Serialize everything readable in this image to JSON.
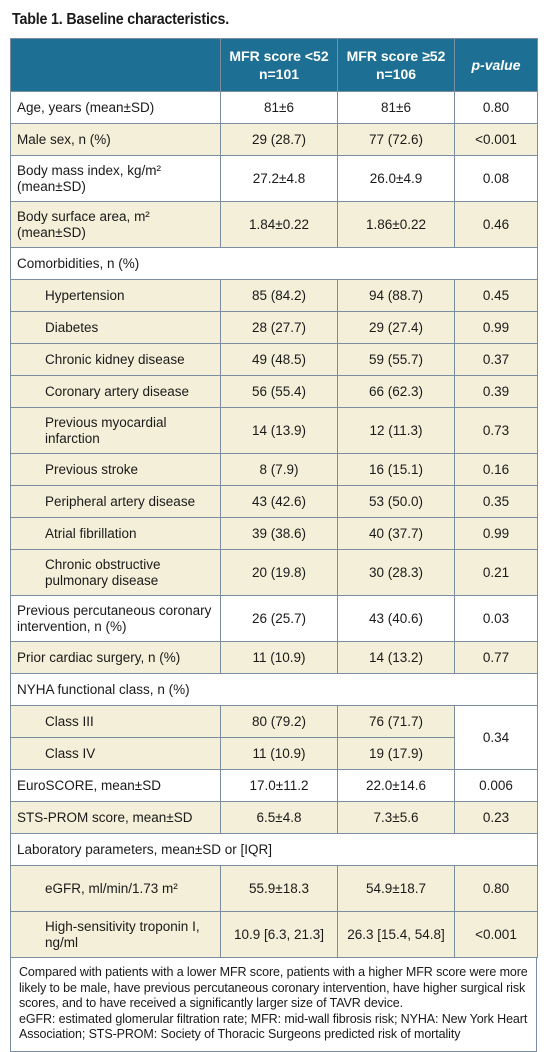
{
  "title": "Table 1. Baseline characteristics.",
  "header": {
    "col2_line1": "MFR score <52",
    "col2_line2": "n=101",
    "col3_line1": "MFR score ≥52",
    "col3_line2": "n=106",
    "col4": "p-value"
  },
  "rows": [
    {
      "label": "Age, years (mean±SD)",
      "a": "81±6",
      "b": "81±6",
      "p": "0.80"
    },
    {
      "label": "Male sex, n (%)",
      "a": "29 (28.7)",
      "b": "77 (72.6)",
      "p": "<0.001"
    },
    {
      "label": "Body mass index, kg/m² (mean±SD)",
      "a": "27.2±4.8",
      "b": "26.0±4.9",
      "p": "0.08"
    },
    {
      "label": "Body surface area, m² (mean±SD)",
      "a": "1.84±0.22",
      "b": "1.86±0.22",
      "p": "0.46"
    },
    {
      "label": "Comorbidities, n (%)"
    },
    {
      "label": "Hypertension",
      "a": "85 (84.2)",
      "b": "94 (88.7)",
      "p": "0.45"
    },
    {
      "label": "Diabetes",
      "a": "28 (27.7)",
      "b": "29 (27.4)",
      "p": "0.99"
    },
    {
      "label": "Chronic kidney disease",
      "a": "49 (48.5)",
      "b": "59 (55.7)",
      "p": "0.37"
    },
    {
      "label": "Coronary artery disease",
      "a": "56 (55.4)",
      "b": "66 (62.3)",
      "p": "0.39"
    },
    {
      "label": "Previous myocardial infarction",
      "a": "14 (13.9)",
      "b": "12 (11.3)",
      "p": "0.73"
    },
    {
      "label": "Previous stroke",
      "a": "8 (7.9)",
      "b": "16 (15.1)",
      "p": "0.16"
    },
    {
      "label": "Peripheral artery disease",
      "a": "43 (42.6)",
      "b": "53 (50.0)",
      "p": "0.35"
    },
    {
      "label": "Atrial fibrillation",
      "a": "39 (38.6)",
      "b": "40 (37.7)",
      "p": "0.99"
    },
    {
      "label": "Chronic obstructive pulmonary disease",
      "a": "20 (19.8)",
      "b": "30 (28.3)",
      "p": "0.21"
    },
    {
      "label": "Previous percutaneous coronary intervention, n (%)",
      "a": "26 (25.7)",
      "b": "43 (40.6)",
      "p": "0.03"
    },
    {
      "label": "Prior cardiac surgery, n (%)",
      "a": "11 (10.9)",
      "b": "14 (13.2)",
      "p": "0.77"
    },
    {
      "label": "NYHA functional class, n (%)"
    },
    {
      "label": "Class III",
      "a": "80 (79.2)",
      "b": "76 (71.7)",
      "p": "0.34"
    },
    {
      "label": "Class IV",
      "a": "11 (10.9)",
      "b": "19 (17.9)"
    },
    {
      "label": "EuroSCORE, mean±SD",
      "a": "17.0±11.2",
      "b": "22.0±14.6",
      "p": "0.006"
    },
    {
      "label": "STS-PROM score, mean±SD",
      "a": "6.5±4.8",
      "b": "7.3±5.6",
      "p": "0.23"
    },
    {
      "label": "Laboratory parameters, mean±SD or [IQR]"
    },
    {
      "label": "eGFR, ml/min/1.73 m²",
      "a": "55.9±18.3",
      "b": "54.9±18.7",
      "p": "0.80"
    },
    {
      "label": "High-sensitivity troponin I, ng/ml",
      "a": "10.9 [6.3, 21.3]",
      "b": "26.3 [15.4, 54.8]",
      "p": "<0.001"
    }
  ],
  "footnote": {
    "line1": "Compared with patients with a lower MFR score, patients with a higher MFR score were more likely to be male, have previous percutaneous coronary intervention, have higher surgical risk scores, and to have received a significantly larger size of TAVR device.",
    "line2": "eGFR: estimated glomerular filtration rate; MFR: mid-wall fibrosis risk; NYHA: New York Heart Association; STS-PROM: Society of Thoracic Surgeons predicted risk of mortality"
  }
}
